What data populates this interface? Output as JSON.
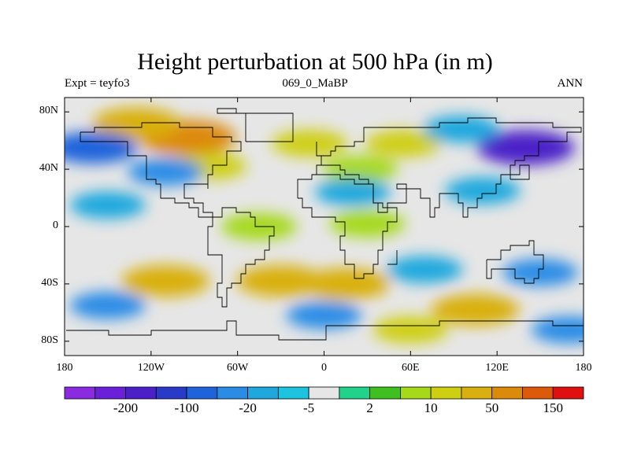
{
  "title": "Height perturbation at 500 hPa (in m)",
  "left_string": "Expt = teyfo3",
  "center_string": "069_0_MaBP",
  "right_string": "ANN",
  "lat_labels": [
    "80N",
    "40N",
    "0",
    "40S",
    "80S"
  ],
  "lat_values": [
    80,
    40,
    0,
    -40,
    -80
  ],
  "lon_labels": [
    "180",
    "120W",
    "60W",
    "0",
    "60E",
    "120E",
    "180"
  ],
  "lon_values": [
    -180,
    -120,
    -60,
    0,
    60,
    120,
    180
  ],
  "colorbar": {
    "colors": [
      "#8a2be2",
      "#6a1fd8",
      "#4b20c8",
      "#2a3ac8",
      "#1f63dc",
      "#2b8ce6",
      "#1fa8de",
      "#1cc4e0",
      "#e6e6e6",
      "#20d28a",
      "#40c020",
      "#a6d91a",
      "#cfcf12",
      "#d9b010",
      "#dc8a0a",
      "#dc5a0a",
      "#e01010"
    ],
    "labels": [
      "-200",
      "-100",
      "-20",
      "-5",
      "2",
      "10",
      "50",
      "150"
    ]
  },
  "chart_data": {
    "type": "heatmap",
    "projection": "cylindrical-equidistant",
    "title": "Height perturbation at 500 hPa (in m)",
    "lon_range": [
      -180,
      180
    ],
    "lat_range": [
      -90,
      90
    ],
    "units": "m",
    "contour_levels": [
      -200,
      -150,
      -100,
      -50,
      -20,
      -10,
      -5,
      -2,
      2,
      5,
      10,
      20,
      50,
      100,
      150,
      200
    ],
    "regions": [
      {
        "lon": -95,
        "lat": 62,
        "value": 100
      },
      {
        "lon": -130,
        "lat": 72,
        "value": 50
      },
      {
        "lon": -80,
        "lat": 42,
        "value": 20
      },
      {
        "lon": -10,
        "lat": 58,
        "value": 20
      },
      {
        "lon": 55,
        "lat": 58,
        "value": 20
      },
      {
        "lon": 25,
        "lat": 40,
        "value": 10
      },
      {
        "lon": -160,
        "lat": 55,
        "value": -50
      },
      {
        "lon": 140,
        "lat": 55,
        "value": -150
      },
      {
        "lon": 95,
        "lat": 68,
        "value": -10
      },
      {
        "lon": -110,
        "lat": 38,
        "value": -20
      },
      {
        "lon": 20,
        "lat": 24,
        "value": -10
      },
      {
        "lon": 110,
        "lat": 25,
        "value": -10
      },
      {
        "lon": -45,
        "lat": 0,
        "value": 10
      },
      {
        "lon": 30,
        "lat": 2,
        "value": 10
      },
      {
        "lon": -150,
        "lat": 15,
        "value": -10
      },
      {
        "lon": -30,
        "lat": -38,
        "value": 50
      },
      {
        "lon": 15,
        "lat": -40,
        "value": 50
      },
      {
        "lon": -110,
        "lat": -38,
        "value": 50
      },
      {
        "lon": 150,
        "lat": -32,
        "value": -20
      },
      {
        "lon": 70,
        "lat": -30,
        "value": -10
      },
      {
        "lon": -150,
        "lat": -55,
        "value": -20
      },
      {
        "lon": 0,
        "lat": -62,
        "value": -20
      },
      {
        "lon": 105,
        "lat": -58,
        "value": 50
      },
      {
        "lon": 60,
        "lat": -72,
        "value": 20
      },
      {
        "lon": 170,
        "lat": -72,
        "value": -20
      }
    ]
  }
}
